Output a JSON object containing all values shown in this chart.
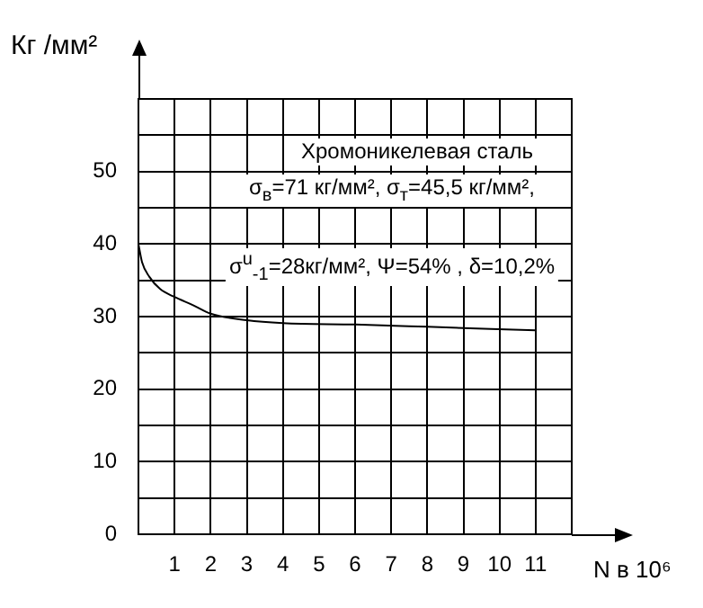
{
  "chart_data": {
    "type": "line",
    "xlabel": "N в 10⁶",
    "ylabel": "Кг /мм²",
    "x": [
      0,
      0.1,
      0.3,
      0.6,
      1,
      1.5,
      2,
      3,
      4,
      6,
      8,
      11
    ],
    "series": [
      {
        "color": "#000000",
        "values": [
          40,
          37.5,
          35.5,
          33.8,
          32.7,
          31.6,
          30.4,
          29.5,
          29.1,
          28.9,
          28.6,
          28.1
        ]
      }
    ],
    "xlim": [
      0,
      12
    ],
    "xticks": [
      1,
      2,
      3,
      4,
      5,
      6,
      7,
      8,
      9,
      10,
      11
    ],
    "ylim": [
      0,
      60
    ],
    "yticks": [
      0,
      {
        "value": 5,
        "label": null
      },
      10,
      {
        "value": 15,
        "label": null
      },
      20,
      {
        "value": 25,
        "label": null
      },
      30,
      {
        "value": 35,
        "label": null
      },
      40,
      {
        "value": 45,
        "label": null
      },
      50,
      {
        "value": 55,
        "label": null
      }
    ],
    "annotations": [
      "Хромоникелевая сталь",
      "σ$_{в}$=71 кг/мм², σ$_{т}$=45,5 кг/мм²,",
      "σ$^{u}$$_{-1}$=28кг/мм², Ψ=54% , δ=10,2%"
    ],
    "grid": true,
    "legend": false,
    "marker": "none",
    "line_style": "solid"
  }
}
